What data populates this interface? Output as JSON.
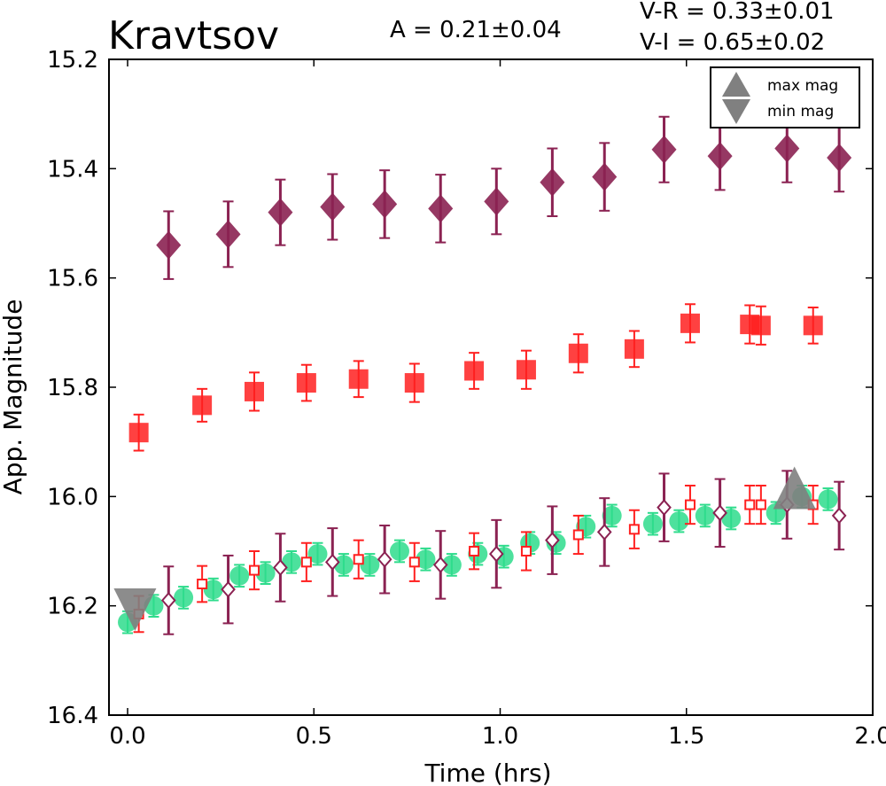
{
  "chart_data": {
    "type": "scatter",
    "title": "Kravtsov",
    "amplitude_label": "A  = 0.21±0.04",
    "color_indices": [
      "V-R = 0.33±0.01",
      "V-I  = 0.65±0.02"
    ],
    "xlabel": "Time (hrs)",
    "ylabel": "App. Magnitude",
    "xlim": [
      -0.05,
      2.0
    ],
    "ylim": [
      16.4,
      15.2
    ],
    "y_inverted": true,
    "grid": false,
    "xticks": [
      "0.0",
      "0.5",
      "1.0",
      "1.5",
      "2.0"
    ],
    "yticks": [
      "15.2",
      "15.4",
      "15.6",
      "15.8",
      "16.0",
      "16.2",
      "16.4"
    ],
    "xtick_values": [
      0.0,
      0.5,
      1.0,
      1.5,
      2.0
    ],
    "ytick_values": [
      15.2,
      15.4,
      15.6,
      15.8,
      16.0,
      16.2,
      16.4
    ],
    "legend": {
      "position": "top-right",
      "entries": [
        {
          "label": "max mag",
          "marker": "triangle-up",
          "color": "#808080"
        },
        {
          "label": "min mag",
          "marker": "triangle-down",
          "color": "#808080"
        }
      ]
    },
    "series": [
      {
        "marker": "diamond-filled",
        "color": "#8B2252",
        "x": [
          0.11,
          0.27,
          0.41,
          0.55,
          0.69,
          0.84,
          0.99,
          1.14,
          1.28,
          1.44,
          1.59,
          1.77,
          1.91
        ],
        "y": [
          15.54,
          15.52,
          15.48,
          15.47,
          15.465,
          15.473,
          15.46,
          15.425,
          15.415,
          15.365,
          15.377,
          15.363,
          15.38
        ],
        "err": [
          0.062,
          0.06,
          0.06,
          0.06,
          0.062,
          0.062,
          0.06,
          0.062,
          0.062,
          0.06,
          0.062,
          0.062,
          0.062
        ]
      },
      {
        "marker": "square-filled",
        "color": "#FF2020",
        "x": [
          0.03,
          0.2,
          0.34,
          0.48,
          0.62,
          0.77,
          0.93,
          1.07,
          1.21,
          1.36,
          1.51,
          1.67,
          1.7,
          1.84
        ],
        "y": [
          15.883,
          15.833,
          15.808,
          15.792,
          15.785,
          15.792,
          15.77,
          15.768,
          15.738,
          15.73,
          15.683,
          15.685,
          15.687,
          15.687
        ],
        "err": [
          0.033,
          0.03,
          0.035,
          0.033,
          0.033,
          0.035,
          0.033,
          0.035,
          0.035,
          0.033,
          0.035,
          0.035,
          0.035,
          0.033
        ]
      },
      {
        "marker": "circle-filled",
        "color": "#2EDC8C",
        "x": [
          0.0,
          0.07,
          0.15,
          0.23,
          0.3,
          0.37,
          0.44,
          0.51,
          0.58,
          0.65,
          0.73,
          0.8,
          0.87,
          0.94,
          1.01,
          1.08,
          1.15,
          1.23,
          1.3,
          1.41,
          1.48,
          1.55,
          1.62,
          1.74,
          1.81,
          1.88
        ],
        "y": [
          16.23,
          16.2,
          16.185,
          16.17,
          16.145,
          16.14,
          16.12,
          16.105,
          16.125,
          16.125,
          16.1,
          16.115,
          16.125,
          16.105,
          16.11,
          16.085,
          16.085,
          16.055,
          16.035,
          16.05,
          16.045,
          16.035,
          16.04,
          16.03,
          16.0,
          16.005
        ],
        "err": [
          0.02,
          0.02,
          0.02,
          0.02,
          0.02,
          0.02,
          0.02,
          0.02,
          0.02,
          0.02,
          0.02,
          0.02,
          0.02,
          0.02,
          0.02,
          0.02,
          0.02,
          0.02,
          0.02,
          0.02,
          0.02,
          0.02,
          0.02,
          0.02,
          0.02,
          0.02
        ]
      },
      {
        "marker": "square-open",
        "color": "#FF2020",
        "x": [
          0.03,
          0.2,
          0.34,
          0.48,
          0.62,
          0.77,
          0.93,
          1.07,
          1.21,
          1.36,
          1.51,
          1.67,
          1.7,
          1.84
        ],
        "y": [
          16.215,
          16.16,
          16.135,
          16.12,
          16.115,
          16.12,
          16.1,
          16.1,
          16.07,
          16.06,
          16.015,
          16.015,
          16.015,
          16.015
        ],
        "err": [
          0.033,
          0.033,
          0.035,
          0.035,
          0.035,
          0.035,
          0.033,
          0.035,
          0.035,
          0.035,
          0.035,
          0.035,
          0.035,
          0.035
        ]
      },
      {
        "marker": "diamond-open",
        "color": "#8B2252",
        "x": [
          0.11,
          0.27,
          0.41,
          0.55,
          0.69,
          0.84,
          0.99,
          1.14,
          1.28,
          1.44,
          1.59,
          1.77,
          1.91
        ],
        "y": [
          16.19,
          16.17,
          16.13,
          16.12,
          16.115,
          16.125,
          16.105,
          16.08,
          16.065,
          16.02,
          16.03,
          16.015,
          16.035
        ],
        "err": [
          0.062,
          0.062,
          0.062,
          0.062,
          0.062,
          0.062,
          0.062,
          0.062,
          0.062,
          0.062,
          0.062,
          0.062,
          0.062
        ]
      }
    ],
    "extrema": [
      {
        "label": "min mag",
        "marker": "triangle-down",
        "color": "#808080",
        "x": 0.02,
        "y": 16.22
      },
      {
        "label": "max mag",
        "marker": "triangle-up",
        "color": "#808080",
        "x": 1.79,
        "y": 16.01
      }
    ]
  }
}
